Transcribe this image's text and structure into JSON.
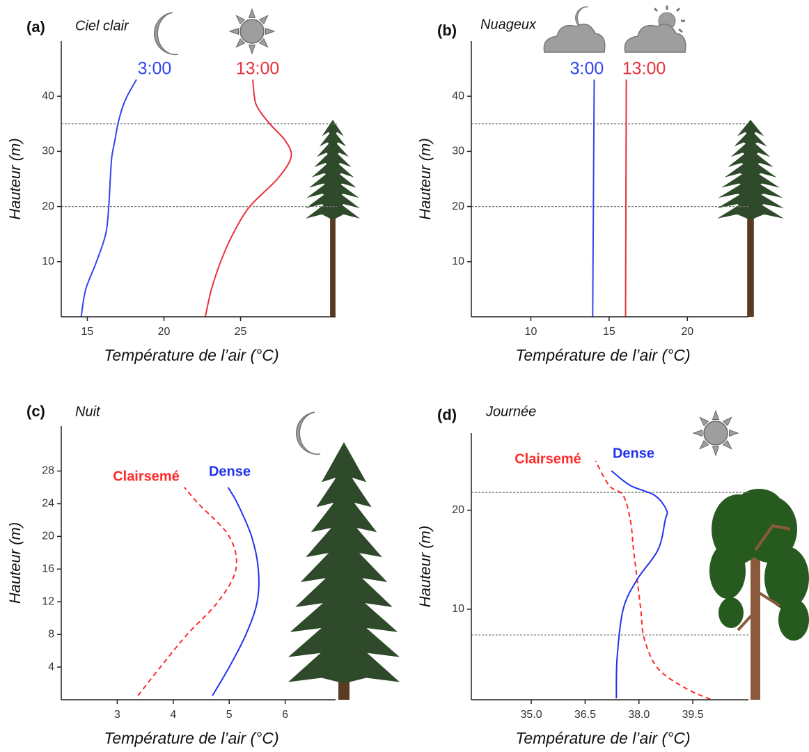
{
  "chart_data": [
    {
      "type": "line",
      "panel_label": "(a)",
      "title": "Ciel clair",
      "xlabel": "Température de l’air (°C)",
      "ylabel": "Hauteur (m)",
      "xlim": [
        13.3,
        31.2
      ],
      "ylim": [
        0,
        50
      ],
      "xticks": [
        15,
        20,
        25
      ],
      "yticks": [
        10,
        20,
        30,
        40
      ],
      "hlines": [
        35,
        20
      ],
      "series": [
        {
          "name": "3:00",
          "color": "#3344ee",
          "dash": false,
          "y": [
            0,
            5,
            10,
            15,
            20,
            25,
            29,
            32,
            35,
            38,
            40,
            43
          ],
          "values": [
            14.6,
            14.9,
            15.6,
            16.2,
            16.4,
            16.5,
            16.6,
            16.8,
            17.0,
            17.3,
            17.6,
            18.2
          ]
        },
        {
          "name": "13:00",
          "color": "#e8313a",
          "dash": false,
          "y": [
            0,
            5,
            10,
            15,
            20,
            25,
            29,
            32,
            35,
            38,
            40,
            43
          ],
          "values": [
            22.7,
            23.1,
            23.7,
            24.5,
            25.6,
            27.4,
            28.3,
            27.9,
            26.9,
            26.1,
            25.9,
            25.8
          ]
        }
      ]
    },
    {
      "type": "line",
      "panel_label": "(b)",
      "title": "Nuageux",
      "xlabel": "Température de l’air (°C)",
      "ylabel": "Hauteur (m)",
      "xlim": [
        6.2,
        23.9
      ],
      "ylim": [
        0,
        50
      ],
      "xticks": [
        10,
        15,
        20
      ],
      "yticks": [
        10,
        20,
        30,
        40
      ],
      "hlines": [
        35,
        20
      ],
      "series": [
        {
          "name": "3:00",
          "color": "#3344ee",
          "dash": false,
          "y": [
            0,
            43
          ],
          "values": [
            13.95,
            14.05
          ]
        },
        {
          "name": "13:00",
          "color": "#e8313a",
          "dash": false,
          "y": [
            0,
            43
          ],
          "values": [
            16.05,
            16.1
          ]
        }
      ]
    },
    {
      "type": "line",
      "panel_label": "(c)",
      "title": "Nuit",
      "xlabel": "Température de l’air (°C)",
      "ylabel": "Hauteur (m)",
      "xlim": [
        2.0,
        6.9
      ],
      "ylim": [
        0,
        33.5
      ],
      "xticks": [
        3,
        4,
        5,
        6
      ],
      "yticks": [
        4,
        8,
        12,
        16,
        20,
        24,
        28
      ],
      "hlines": [],
      "series": [
        {
          "name": "Clairsemé",
          "color": "#ff2a2a",
          "dash": true,
          "y": [
            0.5,
            4,
            8,
            12,
            16,
            20,
            24,
            26
          ],
          "values": [
            3.37,
            3.77,
            4.25,
            4.8,
            5.12,
            5.0,
            4.45,
            4.2
          ]
        },
        {
          "name": "Dense",
          "color": "#2233ee",
          "dash": false,
          "y": [
            0.5,
            4,
            8,
            12,
            16,
            20,
            24,
            26
          ],
          "values": [
            4.7,
            5.0,
            5.3,
            5.5,
            5.52,
            5.4,
            5.15,
            4.98
          ]
        }
      ]
    },
    {
      "type": "line",
      "panel_label": "(d)",
      "title": "Journée",
      "xlabel": "Température de l’air (°C)",
      "ylabel": "Hauteur (m)",
      "xlim": [
        33.33,
        41.05
      ],
      "ylim": [
        0.85,
        27.8
      ],
      "xticks": [
        {
          "value": 35,
          "label": "35.0"
        },
        36.5,
        {
          "value": 38,
          "label": "38.0"
        },
        39.5
      ],
      "yticks": [
        10,
        20
      ],
      "hlines": [
        21.8,
        7.4
      ],
      "series": [
        {
          "name": "Clairsemé",
          "color": "#ff2a2a",
          "dash": true,
          "y": [
            0.9,
            2,
            4,
            7,
            10,
            13,
            16,
            19,
            21.5,
            22.5,
            25
          ],
          "values": [
            39.99,
            39.31,
            38.53,
            38.15,
            38.05,
            37.95,
            37.85,
            37.76,
            37.56,
            37.17,
            36.79
          ]
        },
        {
          "name": "Dense",
          "color": "#2233ee",
          "dash": false,
          "y": [
            1,
            5,
            10,
            13,
            16,
            19,
            20,
            21.5,
            22.5,
            24
          ],
          "values": [
            37.37,
            37.39,
            37.56,
            37.95,
            38.53,
            38.73,
            38.77,
            38.44,
            37.76,
            37.23
          ]
        }
      ]
    }
  ]
}
